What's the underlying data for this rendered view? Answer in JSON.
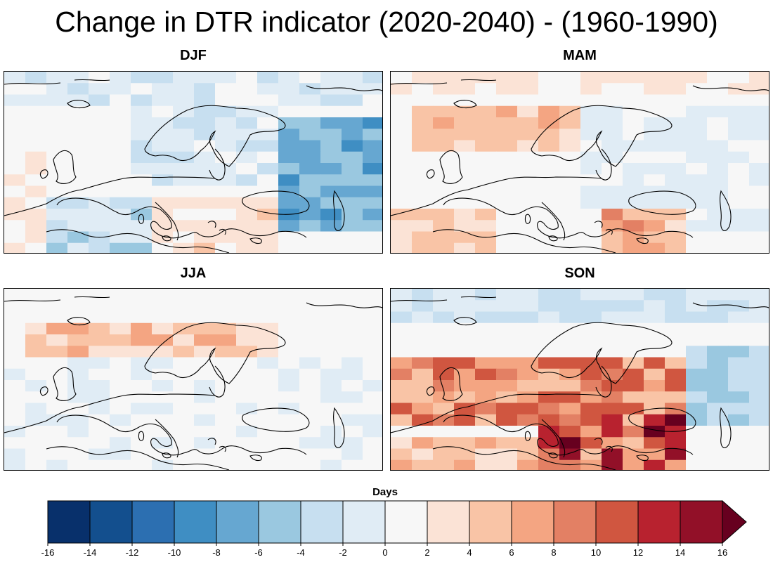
{
  "title": "Change in DTR indicator (2020-2040) - (1960-1990)",
  "panels": [
    {
      "label": "DJF"
    },
    {
      "label": "MAM"
    },
    {
      "label": "JJA"
    },
    {
      "label": "SON"
    }
  ],
  "legend": {
    "title": "Days",
    "ticks": [
      "-16",
      "-14",
      "-12",
      "-10",
      "-8",
      "-6",
      "-4",
      "-2",
      "0",
      "2",
      "4",
      "6",
      "8",
      "10",
      "12",
      "14",
      "16"
    ],
    "colors": [
      "#08306b",
      "#134f8e",
      "#2c6fb1",
      "#3f8ec3",
      "#66a7d1",
      "#9ac8e0",
      "#c7dff0",
      "#e0ecf5",
      "#f7f7f7",
      "#fbe3d6",
      "#f9c4a6",
      "#f4a582",
      "#e38064",
      "#d05640",
      "#b8222f",
      "#921028",
      "#67001f"
    ]
  }
}
